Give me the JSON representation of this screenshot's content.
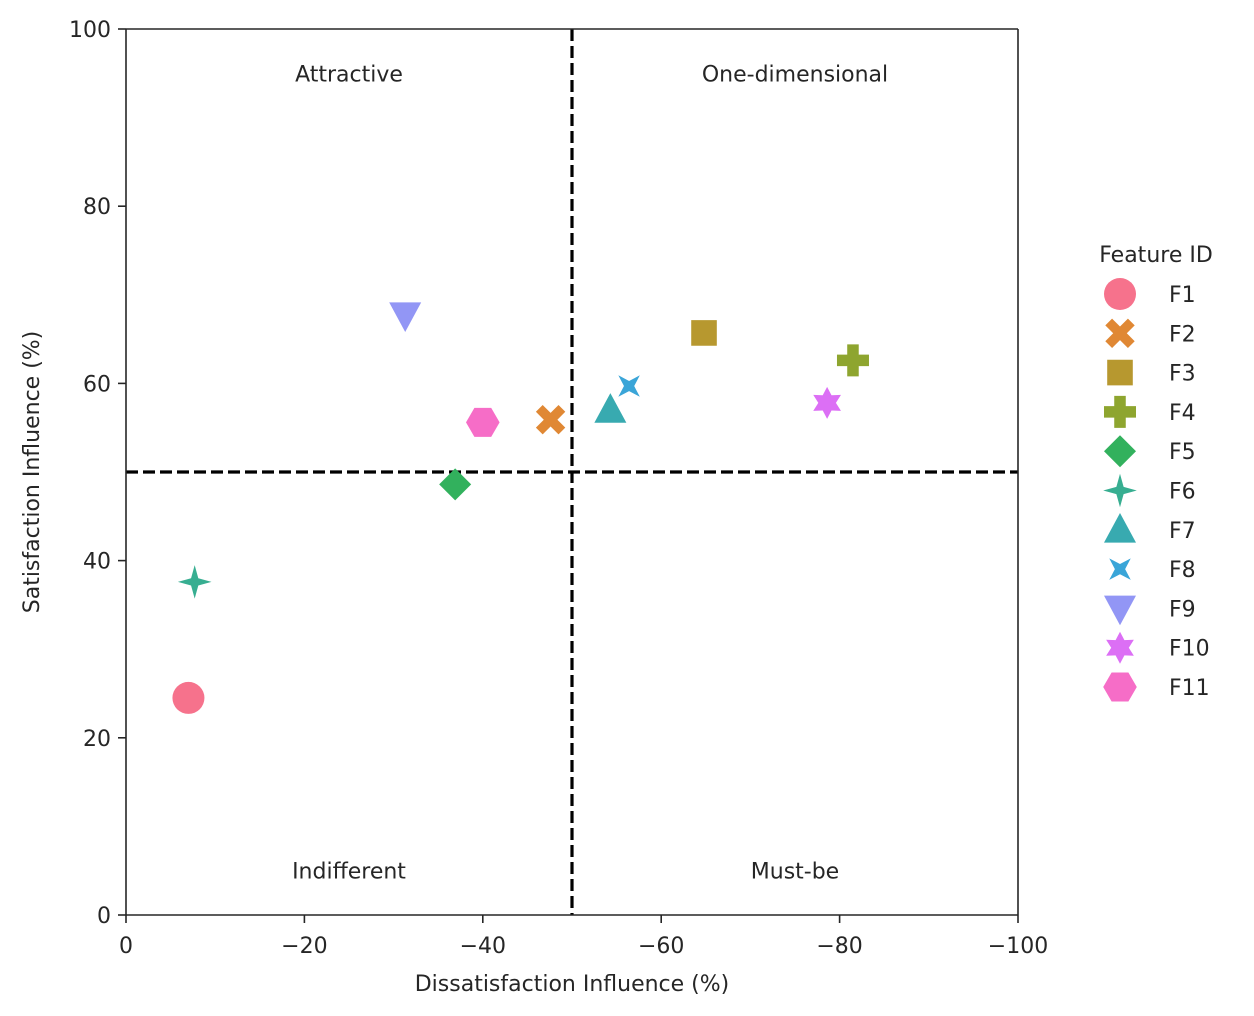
{
  "chart_data": {
    "type": "scatter",
    "title": "",
    "xlabel": "Dissatisfaction Influence (%)",
    "ylabel": "Satisfaction Influence (%)",
    "xlim": [
      0,
      -100
    ],
    "ylim": [
      0,
      100
    ],
    "x_ticks": [
      0,
      -20,
      -40,
      -60,
      -80,
      -100
    ],
    "x_tick_labels": [
      "0",
      "−20",
      "−40",
      "−60",
      "−80",
      "−100"
    ],
    "y_ticks": [
      0,
      20,
      40,
      60,
      80,
      100
    ],
    "y_tick_labels": [
      "0",
      "20",
      "40",
      "60",
      "80",
      "100"
    ],
    "grid": false,
    "reference_lines": {
      "x": -50,
      "y": 50,
      "style": "dashed",
      "color": "#000000"
    },
    "quadrant_labels": [
      {
        "text": "Attractive",
        "x": -25,
        "y": 95
      },
      {
        "text": "One-dimensional",
        "x": -75,
        "y": 95
      },
      {
        "text": "Indifferent",
        "x": -25,
        "y": 5
      },
      {
        "text": "Must-be",
        "x": -75,
        "y": 5
      }
    ],
    "legend": {
      "title": "Feature ID",
      "placement": "outside-right"
    },
    "series": [
      {
        "name": "F1",
        "x": -7.0,
        "y": 24.5,
        "marker": "circle",
        "color": "#f6728c"
      },
      {
        "name": "F2",
        "x": -47.6,
        "y": 55.9,
        "marker": "x",
        "color": "#e08834"
      },
      {
        "name": "F3",
        "x": -64.8,
        "y": 65.7,
        "marker": "square",
        "color": "#b7982f"
      },
      {
        "name": "F4",
        "x": -81.5,
        "y": 62.6,
        "marker": "plus",
        "color": "#8ea52f"
      },
      {
        "name": "F5",
        "x": -36.9,
        "y": 48.6,
        "marker": "diamond",
        "color": "#32b15d"
      },
      {
        "name": "F6",
        "x": -7.7,
        "y": 37.6,
        "marker": "star4",
        "color": "#37ae91"
      },
      {
        "name": "F7",
        "x": -54.3,
        "y": 57.0,
        "marker": "triangle-up",
        "color": "#38aab0"
      },
      {
        "name": "F8",
        "x": -56.4,
        "y": 59.7,
        "marker": "star4-rotated",
        "color": "#3aa5d8"
      },
      {
        "name": "F9",
        "x": -31.3,
        "y": 67.7,
        "marker": "triangle-down",
        "color": "#9296f5"
      },
      {
        "name": "F10",
        "x": -78.6,
        "y": 57.8,
        "marker": "star6",
        "color": "#dc6ff5"
      },
      {
        "name": "F11",
        "x": -40.0,
        "y": 55.6,
        "marker": "hexagon",
        "color": "#f66dc7"
      }
    ]
  }
}
